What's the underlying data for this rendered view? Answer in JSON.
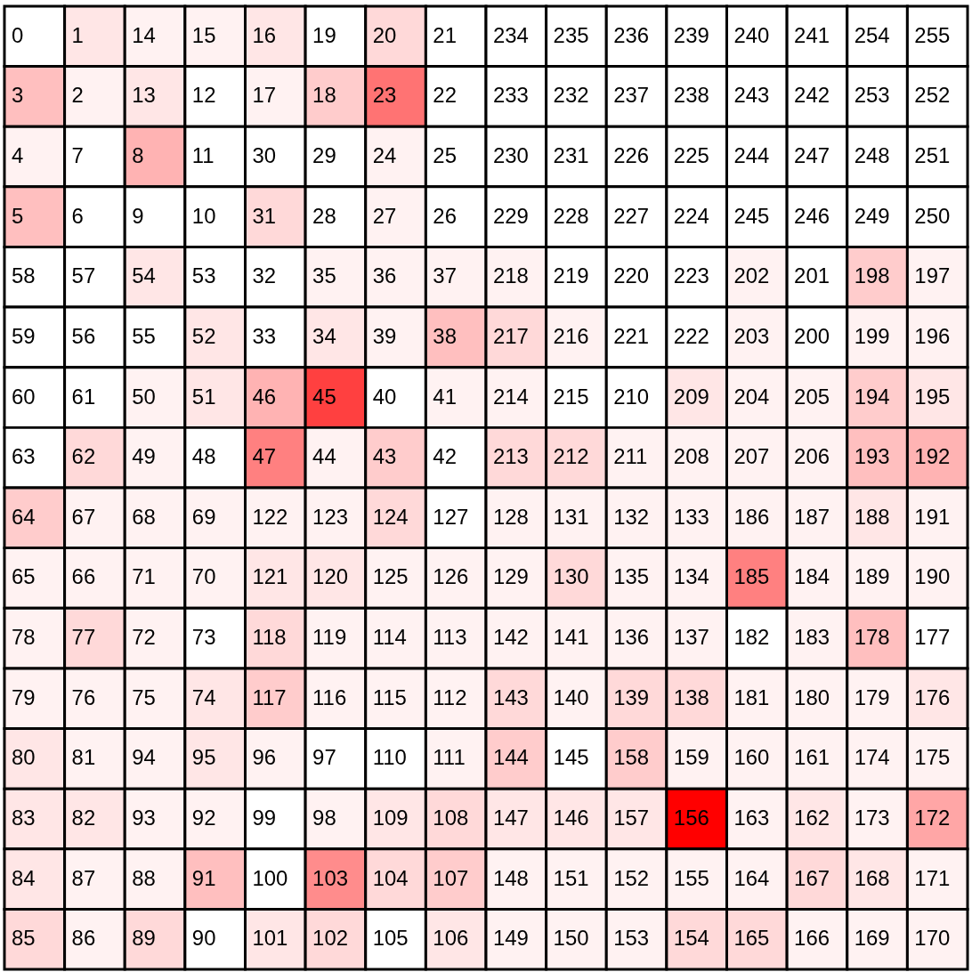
{
  "chart_data": {
    "type": "heatmap",
    "data_labels": true,
    "categories": [
      null,
      null,
      null,
      null,
      null,
      null,
      null,
      null,
      null,
      null,
      null,
      null,
      null,
      null,
      null,
      null
    ],
    "y_categories": [
      null,
      null,
      null,
      null,
      null,
      null,
      null,
      null,
      null,
      null,
      null,
      null,
      null,
      null,
      null,
      null
    ],
    "cells": [
      [
        0,
        1,
        14,
        15,
        16,
        19,
        20,
        21,
        234,
        235,
        236,
        239,
        240,
        241,
        254,
        255
      ],
      [
        3,
        2,
        13,
        12,
        17,
        18,
        23,
        22,
        233,
        232,
        237,
        238,
        243,
        242,
        253,
        252
      ],
      [
        4,
        7,
        8,
        11,
        30,
        29,
        24,
        25,
        230,
        231,
        226,
        225,
        244,
        247,
        248,
        251
      ],
      [
        5,
        6,
        9,
        10,
        31,
        28,
        27,
        26,
        229,
        228,
        227,
        224,
        245,
        246,
        249,
        250
      ],
      [
        58,
        57,
        54,
        53,
        32,
        35,
        36,
        37,
        218,
        219,
        220,
        223,
        202,
        201,
        198,
        197
      ],
      [
        59,
        56,
        55,
        52,
        33,
        34,
        39,
        38,
        217,
        216,
        221,
        222,
        203,
        200,
        199,
        196
      ],
      [
        60,
        61,
        50,
        51,
        46,
        45,
        40,
        41,
        214,
        215,
        210,
        209,
        204,
        205,
        194,
        195
      ],
      [
        63,
        62,
        49,
        48,
        47,
        44,
        43,
        42,
        213,
        212,
        211,
        208,
        207,
        206,
        193,
        192
      ],
      [
        64,
        67,
        68,
        69,
        122,
        123,
        124,
        127,
        128,
        131,
        132,
        133,
        186,
        187,
        188,
        191
      ],
      [
        65,
        66,
        71,
        70,
        121,
        120,
        125,
        126,
        129,
        130,
        135,
        134,
        185,
        184,
        189,
        190
      ],
      [
        78,
        77,
        72,
        73,
        118,
        119,
        114,
        113,
        142,
        141,
        136,
        137,
        182,
        183,
        178,
        177
      ],
      [
        79,
        76,
        75,
        74,
        117,
        116,
        115,
        112,
        143,
        140,
        139,
        138,
        181,
        180,
        179,
        176
      ],
      [
        80,
        81,
        94,
        95,
        96,
        97,
        110,
        111,
        144,
        145,
        158,
        159,
        160,
        161,
        174,
        175
      ],
      [
        83,
        82,
        93,
        92,
        99,
        98,
        109,
        108,
        147,
        146,
        157,
        156,
        163,
        162,
        173,
        172
      ],
      [
        84,
        87,
        88,
        91,
        100,
        103,
        104,
        107,
        148,
        151,
        152,
        155,
        164,
        167,
        168,
        171
      ],
      [
        85,
        86,
        89,
        90,
        101,
        102,
        105,
        106,
        149,
        150,
        153,
        154,
        165,
        166,
        169,
        170
      ]
    ],
    "colors": [
      "#ffffff",
      "#ffe6e6",
      "#fff2f2",
      "#fff2f2",
      "#ffe6e6",
      "#ffffff",
      "#ffd9d9",
      "#ffffff",
      "#ffffff",
      "#ffffff",
      "#ffffff",
      "#ffffff",
      "#ffffff",
      "#ffffff",
      "#ffffff",
      "#ffffff",
      "#ffbfbf",
      "#fff2f2",
      "#ffe6e6",
      "#ffffff",
      "#fff2f2",
      "#ffcccc",
      "#ff7373",
      "#ffffff",
      "#ffffff",
      "#ffffff",
      "#ffffff",
      "#ffffff",
      "#ffffff",
      "#ffffff",
      "#ffffff",
      "#ffffff",
      "#fff2f2",
      "#ffffff",
      "#ffb3b3",
      "#ffffff",
      "#ffffff",
      "#ffffff",
      "#fff2f2",
      "#ffffff",
      "#ffffff",
      "#ffffff",
      "#ffffff",
      "#ffffff",
      "#ffffff",
      "#ffffff",
      "#ffffff",
      "#ffffff",
      "#ffbfbf",
      "#ffffff",
      "#ffffff",
      "#ffffff",
      "#ffd9d9",
      "#ffffff",
      "#fff2f2",
      "#ffffff",
      "#ffffff",
      "#ffffff",
      "#ffffff",
      "#ffffff",
      "#ffffff",
      "#ffffff",
      "#ffffff",
      "#ffffff",
      "#ffffff",
      "#ffffff",
      "#ffe6e6",
      "#ffffff",
      "#ffffff",
      "#fff2f2",
      "#fff2f2",
      "#fff2f2",
      "#fff2f2",
      "#ffffff",
      "#ffffff",
      "#ffffff",
      "#fff2f2",
      "#ffffff",
      "#ffcccc",
      "#fff2f2",
      "#ffffff",
      "#ffffff",
      "#ffffff",
      "#ffe6e6",
      "#ffffff",
      "#ffe6e6",
      "#fff2f2",
      "#ffbfbf",
      "#ffd9d9",
      "#fff2f2",
      "#ffffff",
      "#ffffff",
      "#fff2f2",
      "#ffffff",
      "#fff2f2",
      "#fff2f2",
      "#ffffff",
      "#ffffff",
      "#fff2f2",
      "#ffe6e6",
      "#ffb3b3",
      "#ff4040",
      "#ffffff",
      "#fff2f2",
      "#fff2f2",
      "#ffffff",
      "#ffffff",
      "#ffe6e6",
      "#fff2f2",
      "#fff2f2",
      "#ffcccc",
      "#ffe6e6",
      "#ffffff",
      "#ffd9d9",
      "#fff2f2",
      "#ffffff",
      "#ff8080",
      "#fff2f2",
      "#ffcccc",
      "#ffffff",
      "#ffd9d9",
      "#ffd9d9",
      "#fff2f2",
      "#fff2f2",
      "#fff2f2",
      "#fff2f2",
      "#ffbfbf",
      "#ffb3b3",
      "#ffcccc",
      "#fff2f2",
      "#fff2f2",
      "#fff2f2",
      "#fff2f2",
      "#fff2f2",
      "#ffd9d9",
      "#ffffff",
      "#fff2f2",
      "#fff2f2",
      "#fff2f2",
      "#fff2f2",
      "#fff2f2",
      "#fff2f2",
      "#ffe6e6",
      "#fff2f2",
      "#fff2f2",
      "#fff2f2",
      "#fff2f2",
      "#fff2f2",
      "#ffe6e6",
      "#ffe6e6",
      "#fff2f2",
      "#fff2f2",
      "#fff2f2",
      "#ffd9d9",
      "#fff2f2",
      "#fff2f2",
      "#ff8080",
      "#fff2f2",
      "#fff2f2",
      "#fff2f2",
      "#fff2f2",
      "#ffd9d9",
      "#fff2f2",
      "#ffffff",
      "#ffd9d9",
      "#fff2f2",
      "#fff2f2",
      "#fff2f2",
      "#fff2f2",
      "#fff2f2",
      "#fff2f2",
      "#fff2f2",
      "#ffffff",
      "#fff2f2",
      "#ffbfbf",
      "#ffffff",
      "#fff2f2",
      "#fff2f2",
      "#fff2f2",
      "#ffe6e6",
      "#ffcccc",
      "#fff2f2",
      "#fff2f2",
      "#fff2f2",
      "#ffd9d9",
      "#fff2f2",
      "#ffd9d9",
      "#ffd9d9",
      "#fff2f2",
      "#fff2f2",
      "#fff2f2",
      "#ffe6e6",
      "#ffe6e6",
      "#fff2f2",
      "#fff2f2",
      "#ffe6e6",
      "#fff2f2",
      "#ffffff",
      "#ffffff",
      "#fff2f2",
      "#ffcccc",
      "#ffffff",
      "#ffcccc",
      "#fff2f2",
      "#fff2f2",
      "#fff2f2",
      "#fff2f2",
      "#fff2f2",
      "#ffe6e6",
      "#ffe6e6",
      "#fff2f2",
      "#fff2f2",
      "#ffffff",
      "#fff2f2",
      "#ffe6e6",
      "#ffd9d9",
      "#ffe6e6",
      "#ffe6e6",
      "#ffe6e6",
      "#ff0000",
      "#fff2f2",
      "#ffe6e6",
      "#fff2f2",
      "#ffa6a6",
      "#ffe6e6",
      "#fff2f2",
      "#fff2f2",
      "#ffbfbf",
      "#ffffff",
      "#ff8c8c",
      "#ffd9d9",
      "#ffcccc",
      "#fff2f2",
      "#fff2f2",
      "#fff2f2",
      "#fff2f2",
      "#fff2f2",
      "#ffd9d9",
      "#ffe6e6",
      "#fff2f2",
      "#ffd9d9",
      "#fff2f2",
      "#ffd9d9",
      "#ffffff",
      "#ffe6e6",
      "#ffd9d9",
      "#ffffff",
      "#ffe6e6",
      "#fff2f2",
      "#fff2f2",
      "#fff2f2",
      "#ffd9d9",
      "#ffd9d9",
      "#fff2f2",
      "#fff2f2",
      "#fff2f2"
    ]
  }
}
